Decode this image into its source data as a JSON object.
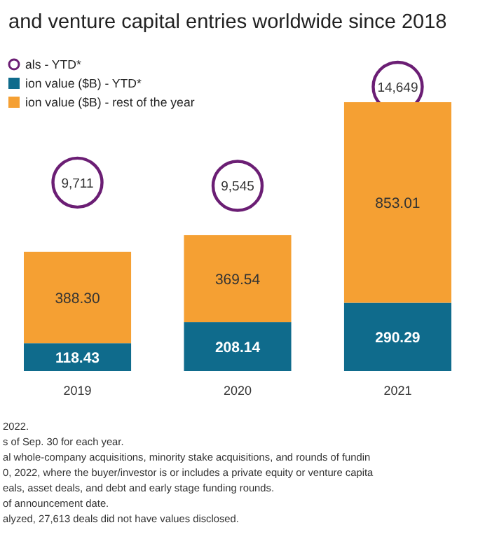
{
  "chart_data": {
    "type": "bar",
    "title": "and venture capital entries worldwide since 2018",
    "categories": [
      "2019",
      "2020",
      "2021"
    ],
    "stacked": true,
    "data_labels": true,
    "legend": "top left",
    "series": [
      {
        "name": "als - YTD*",
        "type": "scatter",
        "axis": "y2",
        "marker": "circle",
        "color": "#6b1e74",
        "values": [
          9711,
          9545,
          14649
        ],
        "value_labels": [
          "9,711",
          "9,545",
          "14,649"
        ]
      },
      {
        "name": "ion value ($B) - YTD*",
        "color": "#0f6b8c",
        "values": [
          118.43,
          208.14,
          290.29
        ],
        "value_labels": [
          "118.43",
          "208.14",
          "290.29"
        ]
      },
      {
        "name": "ion value ($B) - rest of the year",
        "color": "#f5a033",
        "values": [
          388.3,
          369.54,
          853.01
        ],
        "value_labels": [
          "388.30",
          "369.54",
          "853.01"
        ]
      }
    ],
    "annotations": [
      "2022.",
      "s of Sep. 30 for each year.",
      "al whole-company acquisitions, minority stake acquisitions, and rounds of fundin",
      "0, 2022, where the buyer/investor is or includes a private equity or venture capita",
      "eals, asset deals, and debt and early stage funding rounds.",
      "of announcement date.",
      "alyzed, 27,613 deals did not have values disclosed."
    ]
  }
}
